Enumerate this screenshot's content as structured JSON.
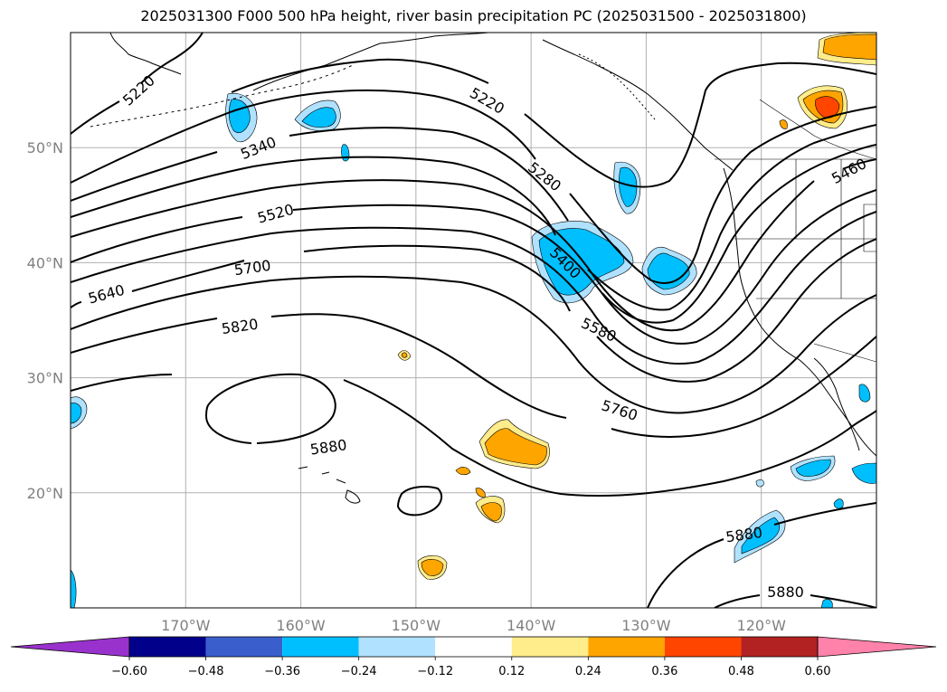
{
  "title": "2025031300 F000 500 hPa height, river basin precipitation PC (2025031500 - 2025031800)",
  "map": {
    "lon_range": [
      -180,
      -110
    ],
    "lat_range": [
      10,
      60
    ],
    "lat_ticks": [
      {
        "value": 20,
        "label": "20°N"
      },
      {
        "value": 30,
        "label": "30°N"
      },
      {
        "value": 40,
        "label": "40°N"
      },
      {
        "value": 50,
        "label": "50°N"
      }
    ],
    "lon_ticks": [
      {
        "value": -170,
        "label": "170°W"
      },
      {
        "value": -160,
        "label": "160°W"
      },
      {
        "value": -150,
        "label": "150°W"
      },
      {
        "value": -140,
        "label": "140°W"
      },
      {
        "value": -130,
        "label": "130°W"
      },
      {
        "value": -120,
        "label": "120°W"
      }
    ],
    "grid": true,
    "height_contour_labels": [
      {
        "text": "5220",
        "lon": -174.1,
        "lat": 55.0,
        "angle": -42
      },
      {
        "text": "5220",
        "lon": -143.8,
        "lat": 54.1,
        "angle": 30
      },
      {
        "text": "5340",
        "lon": -163.7,
        "lat": 50.0,
        "angle": -22
      },
      {
        "text": "5280",
        "lon": -138.8,
        "lat": 47.5,
        "angle": 38
      },
      {
        "text": "5460",
        "lon": -112.4,
        "lat": 48.0,
        "angle": -28
      },
      {
        "text": "5520",
        "lon": -162.2,
        "lat": 44.3,
        "angle": -15
      },
      {
        "text": "5400",
        "lon": -137.0,
        "lat": 40.0,
        "angle": 45
      },
      {
        "text": "5700",
        "lon": -164.2,
        "lat": 39.6,
        "angle": -8
      },
      {
        "text": "5640",
        "lon": -176.9,
        "lat": 37.3,
        "angle": -15
      },
      {
        "text": "5820",
        "lon": -165.3,
        "lat": 34.5,
        "angle": -8
      },
      {
        "text": "5580",
        "lon": -134.1,
        "lat": 34.2,
        "angle": 25
      },
      {
        "text": "5760",
        "lon": -132.3,
        "lat": 27.2,
        "angle": 18
      },
      {
        "text": "5880",
        "lon": -157.6,
        "lat": 24.0,
        "angle": -8
      },
      {
        "text": "5880",
        "lon": -121.5,
        "lat": 16.4,
        "angle": -8
      },
      {
        "text": "5880",
        "lon": -117.9,
        "lat": 11.4,
        "angle": 0
      }
    ]
  },
  "colorbar": {
    "colors": [
      "#9932CC",
      "#00008B",
      "#3A5FCD",
      "#00BFFF",
      "#B0E2FF",
      "#FFFFFF",
      "#FFEC8B",
      "#FFA500",
      "#FF4500",
      "#B22222",
      "#FF82AB"
    ],
    "labels": [
      "−0.60",
      "−0.48",
      "−0.36",
      "−0.24",
      "−0.12",
      "0.12",
      "0.24",
      "0.36",
      "0.48",
      "0.60"
    ]
  }
}
